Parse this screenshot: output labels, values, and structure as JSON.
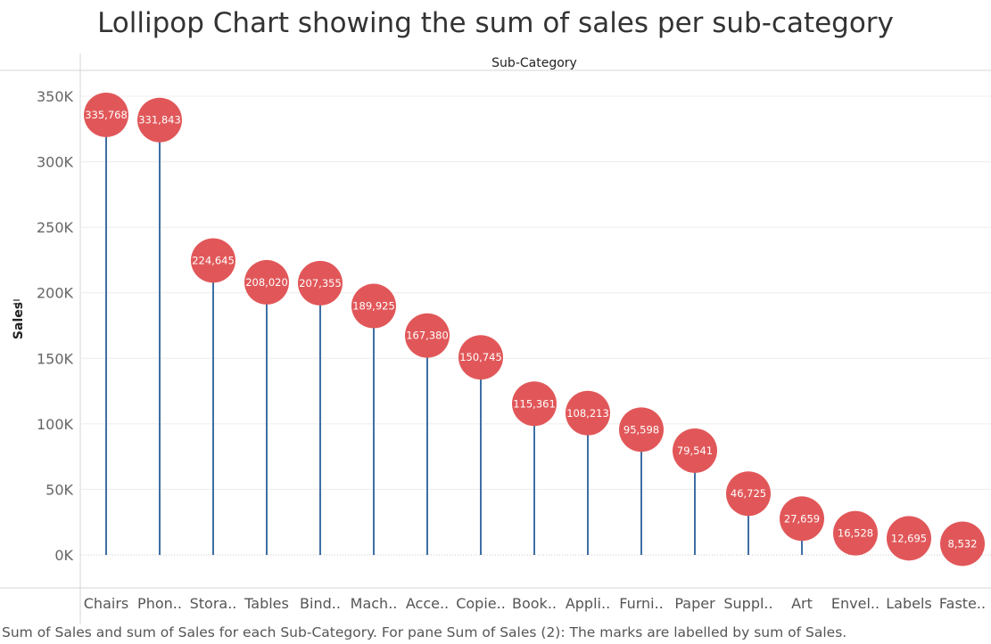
{
  "title": "Lollipop Chart showing the sum of sales per sub-category",
  "footer": "Sum of Sales and sum of Sales for each Sub-Category.  For pane Sum of Sales (2):  The marks are labelled by sum of Sales.",
  "colors": {
    "stem": "#3e6fa4",
    "dot": "#e15759",
    "label": "#ffffff",
    "grid": "#ececec"
  },
  "chart_data": {
    "type": "lollipop",
    "title": "Lollipop Chart showing the sum of sales per sub-category",
    "header_label": "Sub-Category",
    "ylabel": "Sales",
    "ylim": [
      0,
      350000
    ],
    "yticks": [
      0,
      50000,
      100000,
      150000,
      200000,
      250000,
      300000,
      350000
    ],
    "ytick_labels": [
      "0K",
      "50K",
      "100K",
      "150K",
      "200K",
      "250K",
      "300K",
      "350K"
    ],
    "categories": [
      "Chairs",
      "Phon..",
      "Stora..",
      "Tables",
      "Bind..",
      "Mach..",
      "Acce..",
      "Copie..",
      "Book..",
      "Appli..",
      "Furni..",
      "Paper",
      "Suppl..",
      "Art",
      "Envel..",
      "Labels",
      "Faste.."
    ],
    "values": [
      335768,
      331843,
      224645,
      208020,
      207355,
      189925,
      167380,
      150745,
      115361,
      108213,
      95598,
      79541,
      46725,
      27659,
      16528,
      12695,
      8532
    ],
    "value_labels": [
      "335,768",
      "331,843",
      "224,645",
      "208,020",
      "207,355",
      "189,925",
      "167,380",
      "150,745",
      "115,361",
      "108,213",
      "95,598",
      "79,541",
      "46,725",
      "27,659",
      "16,528",
      "12,695",
      "8,532"
    ],
    "grid": true
  }
}
